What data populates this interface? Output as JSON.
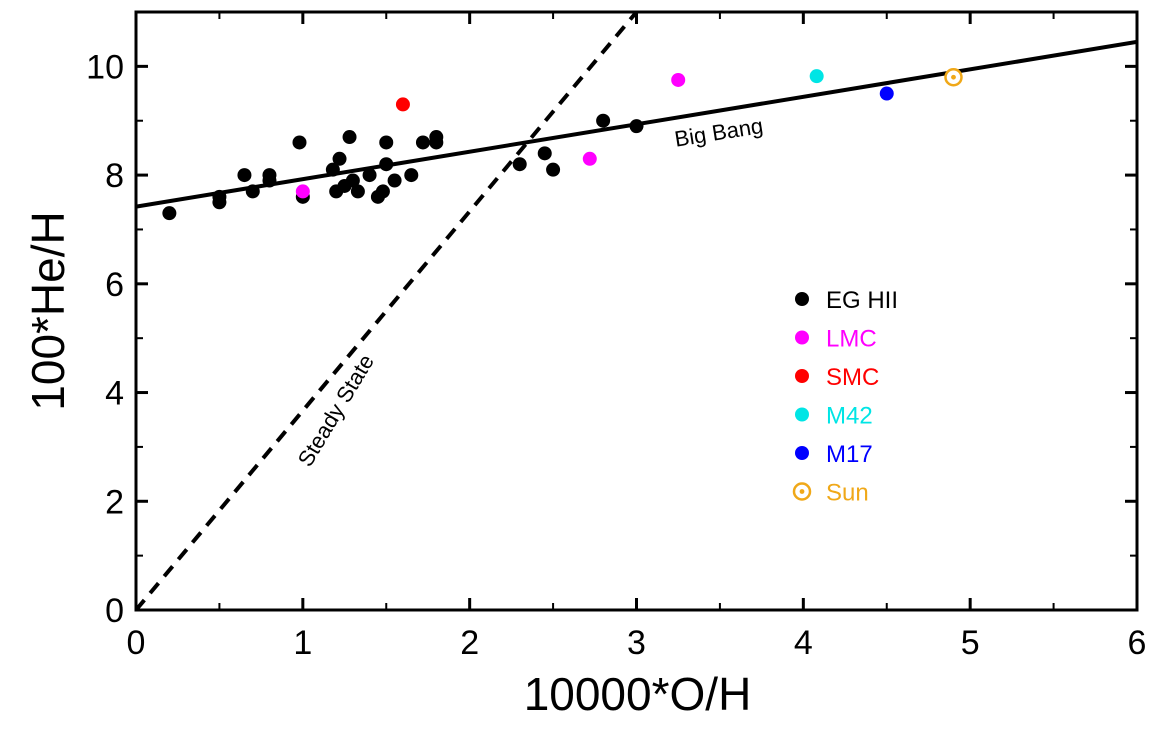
{
  "chart_data": {
    "type": "scatter",
    "title": "",
    "xlabel": "10000*O/H",
    "ylabel": "100*He/H",
    "xlim": [
      0,
      6
    ],
    "ylim": [
      0,
      11
    ],
    "x_ticks": [
      "0",
      "1",
      "2",
      "3",
      "4",
      "5",
      "6"
    ],
    "y_ticks": [
      "0",
      "2",
      "4",
      "6",
      "8",
      "10"
    ],
    "x_tick_values": [
      0,
      1,
      2,
      3,
      4,
      5,
      6
    ],
    "y_tick_values": [
      0,
      2,
      4,
      6,
      8,
      10
    ],
    "grid": false,
    "legend_placement": "right",
    "lines": [
      {
        "name": "Big Bang",
        "style": "solid",
        "color": "#000000",
        "x": [
          0,
          6
        ],
        "y": [
          7.42,
          10.45
        ]
      },
      {
        "name": "Steady State",
        "style": "dashed",
        "color": "#000000",
        "x": [
          0,
          3.0
        ],
        "y": [
          0,
          11
        ]
      }
    ],
    "series": [
      {
        "name": "EG HII",
        "color": "#000000",
        "marker": "filled",
        "points": [
          [
            0.2,
            7.3
          ],
          [
            0.5,
            7.6
          ],
          [
            0.5,
            7.5
          ],
          [
            0.65,
            8.0
          ],
          [
            0.7,
            7.7
          ],
          [
            0.8,
            8.0
          ],
          [
            0.8,
            7.9
          ],
          [
            0.98,
            8.6
          ],
          [
            1.0,
            7.6
          ],
          [
            1.18,
            8.1
          ],
          [
            1.2,
            7.7
          ],
          [
            1.22,
            8.3
          ],
          [
            1.25,
            7.8
          ],
          [
            1.28,
            8.7
          ],
          [
            1.3,
            7.9
          ],
          [
            1.33,
            7.7
          ],
          [
            1.4,
            8.0
          ],
          [
            1.45,
            7.6
          ],
          [
            1.48,
            7.7
          ],
          [
            1.5,
            8.6
          ],
          [
            1.5,
            8.2
          ],
          [
            1.55,
            7.9
          ],
          [
            1.65,
            8.0
          ],
          [
            1.72,
            8.6
          ],
          [
            1.8,
            8.7
          ],
          [
            1.8,
            8.6
          ],
          [
            2.3,
            8.2
          ],
          [
            2.45,
            8.4
          ],
          [
            2.5,
            8.1
          ],
          [
            2.8,
            9.0
          ],
          [
            3.0,
            8.9
          ]
        ]
      },
      {
        "name": "LMC",
        "color": "#ff00ff",
        "marker": "filled",
        "points": [
          [
            1.0,
            7.7
          ],
          [
            2.72,
            8.3
          ],
          [
            3.25,
            9.75
          ]
        ]
      },
      {
        "name": "SMC",
        "color": "#ff0000",
        "marker": "filled",
        "points": [
          [
            1.6,
            9.3
          ]
        ]
      },
      {
        "name": "M42",
        "color": "#00e5e5",
        "marker": "filled",
        "points": [
          [
            4.08,
            9.82
          ]
        ]
      },
      {
        "name": "M17",
        "color": "#0000ff",
        "marker": "filled",
        "points": [
          [
            4.5,
            9.5
          ]
        ]
      },
      {
        "name": "Sun",
        "color": "#f0a818",
        "marker": "sun",
        "points": [
          [
            4.9,
            9.8
          ]
        ]
      }
    ],
    "annotations": [
      {
        "text": "Big Bang",
        "x": 3.5,
        "y": 8.65
      },
      {
        "text": "Steady State",
        "x": 1.2,
        "y": 3.6
      }
    ],
    "legend": [
      "EG HII",
      "LMC",
      "SMC",
      "M42",
      "M17",
      "Sun"
    ]
  }
}
